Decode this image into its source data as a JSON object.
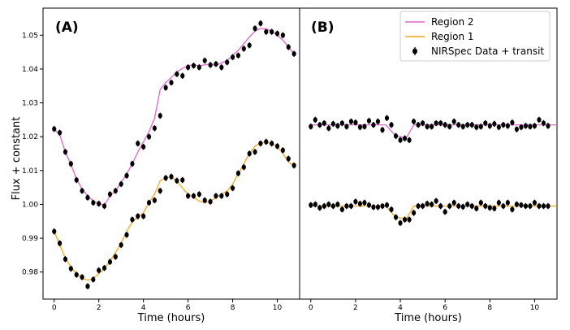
{
  "chart_data": {
    "type": "scatter",
    "ylabel": "Flux + constant",
    "ylim": [
      0.972,
      1.058
    ],
    "yticks": [
      0.98,
      0.99,
      1.0,
      1.01,
      1.02,
      1.03,
      1.04,
      1.05
    ],
    "xticks": [
      0,
      2,
      4,
      6,
      8,
      10
    ],
    "xlim": [
      -0.5,
      11.0
    ],
    "colors": {
      "region2": "#e065d0",
      "region1": "#f2a81d",
      "data": "#000000"
    },
    "legend": {
      "position": "top-right",
      "entries": [
        "Region 2",
        "Region 1",
        "NIRSpec Data + transit"
      ]
    },
    "panels": [
      {
        "label": "(A)",
        "xlabel": "Time (hours)",
        "series": [
          {
            "name": "Region 2",
            "x": [
              0,
              0.25,
              0.5,
              0.75,
              1.0,
              1.25,
              1.5,
              1.75,
              2.0,
              2.25,
              2.5,
              2.75,
              3.0,
              3.25,
              3.5,
              3.75,
              4.0,
              4.25,
              4.5,
              4.75,
              5.0,
              5.25,
              5.5,
              5.75,
              6.0,
              6.25,
              6.5,
              6.75,
              7.0,
              7.25,
              7.5,
              7.75,
              8.0,
              8.25,
              8.5,
              8.75,
              9.0,
              9.25,
              9.5,
              9.75,
              10.0,
              10.25,
              10.5,
              10.75
            ],
            "y": [
              1.0223,
              1.0205,
              1.0155,
              1.0118,
              1.0075,
              1.0045,
              1.0025,
              1.001,
              1.0002,
              0.9998,
              1.0025,
              1.004,
              1.0065,
              1.009,
              1.012,
              1.0155,
              1.0185,
              1.0215,
              1.0255,
              1.034,
              1.036,
              1.0375,
              1.0392,
              1.0402,
              1.041,
              1.0412,
              1.041,
              1.0412,
              1.0415,
              1.041,
              1.0418,
              1.0425,
              1.044,
              1.0455,
              1.0475,
              1.0495,
              1.0512,
              1.052,
              1.0518,
              1.0512,
              1.05,
              1.0485,
              1.0465,
              1.0445
            ]
          },
          {
            "name": "Region 1",
            "x": [
              0,
              0.25,
              0.5,
              0.75,
              1.0,
              1.25,
              1.5,
              1.75,
              2.0,
              2.25,
              2.5,
              2.75,
              3.0,
              3.25,
              3.5,
              3.75,
              4.0,
              4.25,
              4.5,
              4.75,
              5.0,
              5.25,
              5.5,
              5.75,
              6.0,
              6.25,
              6.5,
              6.75,
              7.0,
              7.25,
              7.5,
              7.75,
              8.0,
              8.25,
              8.5,
              8.75,
              9.0,
              9.25,
              9.5,
              9.75,
              10.0,
              10.25,
              10.5,
              10.75
            ],
            "y": [
              0.992,
              0.988,
              0.9842,
              0.9815,
              0.9795,
              0.9782,
              0.9776,
              0.978,
              0.9795,
              0.981,
              0.9832,
              0.9858,
              0.9885,
              0.992,
              0.9948,
              0.9962,
              0.9975,
              1.0005,
              1.003,
              1.007,
              1.008,
              1.008,
              1.007,
              1.0048,
              1.003,
              1.002,
              1.001,
              1.0005,
              1.001,
              1.002,
              1.003,
              1.004,
              1.006,
              1.009,
              1.012,
              1.015,
              1.0172,
              1.0182,
              1.0183,
              1.018,
              1.017,
              1.015,
              1.0125,
              1.0115
            ]
          },
          {
            "name": "NIRSpec Data + transit",
            "x": [
              0,
              0.25,
              0.5,
              0.75,
              1.0,
              1.25,
              1.5,
              1.75,
              2.0,
              2.25,
              2.5,
              2.75,
              3.0,
              3.25,
              3.5,
              3.75,
              4.0,
              4.25,
              4.5,
              4.75,
              5.0,
              5.25,
              5.5,
              5.75,
              6.0,
              6.25,
              6.5,
              6.75,
              7.0,
              7.25,
              7.5,
              7.75,
              8.0,
              8.25,
              8.5,
              8.75,
              9.0,
              9.25,
              9.5,
              9.75,
              10.0,
              10.25,
              10.5,
              10.75,
              0,
              0.25,
              0.5,
              0.75,
              1.0,
              1.25,
              1.5,
              1.75,
              2.0,
              2.25,
              2.5,
              2.75,
              3.0,
              3.25,
              3.5,
              3.75,
              4.0,
              4.25,
              4.5,
              4.75,
              5.0,
              5.25,
              5.5,
              5.75,
              6.0,
              6.25,
              6.5,
              6.75,
              7.0,
              7.25,
              7.5,
              7.75,
              8.0,
              8.25,
              8.5,
              8.75,
              9.0,
              9.25,
              9.5,
              9.75,
              10.0,
              10.25,
              10.5,
              10.75
            ],
            "y": [
              1.0223,
              1.0212,
              1.0155,
              1.012,
              1.0072,
              1.004,
              1.002,
              1.0005,
              1.0002,
              0.9995,
              1.003,
              1.004,
              1.006,
              1.0085,
              1.012,
              1.018,
              1.017,
              1.02,
              1.0225,
              1.0262,
              1.0345,
              1.036,
              1.0385,
              1.038,
              1.0405,
              1.041,
              1.0405,
              1.0425,
              1.0412,
              1.0415,
              1.0405,
              1.042,
              1.0435,
              1.044,
              1.046,
              1.047,
              1.052,
              1.0535,
              1.051,
              1.051,
              1.0505,
              1.05,
              1.0465,
              1.0445,
              0.992,
              0.9885,
              0.9838,
              0.981,
              0.9792,
              0.9785,
              0.9758,
              0.9778,
              0.9805,
              0.9812,
              0.983,
              0.9845,
              0.988,
              0.991,
              0.9955,
              0.9965,
              0.9965,
              1.0005,
              1.0012,
              1.004,
              1.0078,
              1.0082,
              1.007,
              1.0072,
              1.0025,
              1.0025,
              1.003,
              1.0012,
              1.0008,
              1.0025,
              1.0025,
              1.003,
              1.0048,
              1.0092,
              1.011,
              1.015,
              1.0155,
              1.018,
              1.0185,
              1.018,
              1.0172,
              1.016,
              1.0135,
              1.0115
            ]
          }
        ]
      },
      {
        "label": "(B)",
        "xlabel": "Time (hours)",
        "series": [
          {
            "name": "Region 2",
            "x": [
              0,
              3.35,
              3.75,
              4.25,
              4.6,
              11
            ],
            "y": [
              1.0235,
              1.0235,
              1.0205,
              1.0195,
              1.0235,
              1.0235
            ]
          },
          {
            "name": "Region 1",
            "x": [
              0,
              3.35,
              3.75,
              4.25,
              4.6,
              11
            ],
            "y": [
              0.9995,
              0.9995,
              0.9965,
              0.9955,
              0.9995,
              0.9995
            ]
          },
          {
            "name": "NIRSpec Data + transit",
            "x": [
              0,
              0.2,
              0.4,
              0.6,
              0.8,
              1.0,
              1.2,
              1.4,
              1.6,
              1.8,
              2.0,
              2.2,
              2.4,
              2.6,
              2.8,
              3.0,
              3.2,
              3.4,
              3.6,
              3.8,
              4.0,
              4.2,
              4.4,
              4.6,
              4.8,
              5.0,
              5.2,
              5.4,
              5.6,
              5.8,
              6.0,
              6.2,
              6.4,
              6.6,
              6.8,
              7.0,
              7.2,
              7.4,
              7.6,
              7.8,
              8.0,
              8.2,
              8.4,
              8.6,
              8.8,
              9.0,
              9.2,
              9.4,
              9.6,
              9.8,
              10.0,
              10.2,
              10.4,
              10.6,
              0,
              0.2,
              0.4,
              0.6,
              0.8,
              1.0,
              1.2,
              1.4,
              1.6,
              1.8,
              2.0,
              2.2,
              2.4,
              2.6,
              2.8,
              3.0,
              3.2,
              3.4,
              3.6,
              3.8,
              4.0,
              4.2,
              4.4,
              4.6,
              4.8,
              5.0,
              5.2,
              5.4,
              5.6,
              5.8,
              6.0,
              6.2,
              6.4,
              6.6,
              6.8,
              7.0,
              7.2,
              7.4,
              7.6,
              7.8,
              8.0,
              8.2,
              8.4,
              8.6,
              8.8,
              9.0,
              9.2,
              9.4,
              9.6,
              9.8,
              10.0,
              10.2,
              10.4,
              10.6
            ],
            "y": [
              1.023,
              1.025,
              1.0235,
              1.024,
              1.0225,
              1.0238,
              1.0232,
              1.024,
              1.023,
              1.0245,
              1.0242,
              1.0228,
              1.023,
              1.0247,
              1.0235,
              1.0245,
              1.022,
              1.0255,
              1.0235,
              1.0202,
              1.019,
              1.0195,
              1.019,
              1.0245,
              1.0235,
              1.024,
              1.023,
              1.023,
              1.024,
              1.024,
              1.0235,
              1.023,
              1.0245,
              1.0235,
              1.023,
              1.0235,
              1.0235,
              1.0228,
              1.023,
              1.024,
              1.0232,
              1.0238,
              1.0228,
              1.0235,
              1.0232,
              1.0242,
              1.0222,
              1.0228,
              1.0232,
              1.023,
              1.0232,
              1.025,
              1.024,
              1.0232,
              0.9998,
              1.0,
              0.999,
              0.9995,
              1.0,
              0.9995,
              1.0,
              0.9985,
              0.9995,
              0.9995,
              1.0008,
              1.0002,
              1.0005,
              0.9998,
              0.9992,
              0.9992,
              0.9995,
              0.9998,
              0.9985,
              0.9962,
              0.9945,
              0.9955,
              0.9955,
              0.9975,
              0.9995,
              0.9995,
              1.0002,
              1.0,
              1.001,
              0.9995,
              0.9978,
              0.9995,
              1.0005,
              0.9995,
              0.9993,
              1.0,
              0.9995,
              0.9988,
              1.0005,
              0.9995,
              0.999,
              0.9988,
              1.0005,
              0.9995,
              1.0005,
              0.9985,
              1.0,
              0.9998,
              0.9995,
              0.9995,
              1.0005,
              0.9995,
              0.9995,
              0.9995
            ]
          }
        ]
      }
    ]
  }
}
